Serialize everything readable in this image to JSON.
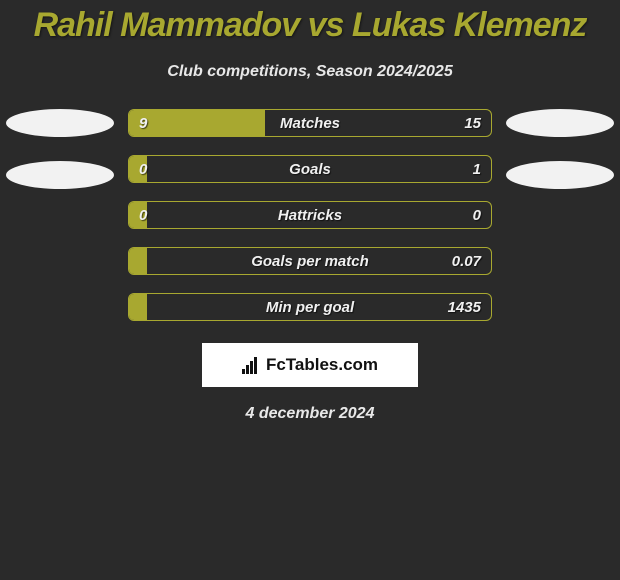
{
  "title": "Rahil Mammadov vs Lukas Klemenz",
  "subtitle": "Club competitions, Season 2024/2025",
  "colors": {
    "background": "#2a2a2a",
    "accent": "#a8a830",
    "title": "#a8a830",
    "text": "#e8e8e8",
    "bar_border": "#a8a830",
    "bar_fill_a": "#a8a830",
    "ellipse": "#f2f2f2",
    "brand_bg": "#ffffff",
    "brand_text": "#111111"
  },
  "ellipses": {
    "left_count": 2,
    "right_count": 2
  },
  "stats": [
    {
      "label": "Matches",
      "a": "9",
      "b": "15",
      "a_pct": 37.5
    },
    {
      "label": "Goals",
      "a": "0",
      "b": "1",
      "a_pct": 5.0
    },
    {
      "label": "Hattricks",
      "a": "0",
      "b": "0",
      "a_pct": 5.0
    },
    {
      "label": "Goals per match",
      "a": "",
      "b": "0.07",
      "a_pct": 5.0
    },
    {
      "label": "Min per goal",
      "a": "",
      "b": "1435",
      "a_pct": 5.0
    }
  ],
  "brand": "FcTables.com",
  "date": "4 december 2024",
  "typography": {
    "title_fontsize": 34,
    "subtitle_fontsize": 16,
    "stat_label_fontsize": 15,
    "value_fontsize": 15,
    "brand_fontsize": 17,
    "date_fontsize": 16
  },
  "bar": {
    "height": 28,
    "border_radius": 6,
    "gap": 18
  }
}
